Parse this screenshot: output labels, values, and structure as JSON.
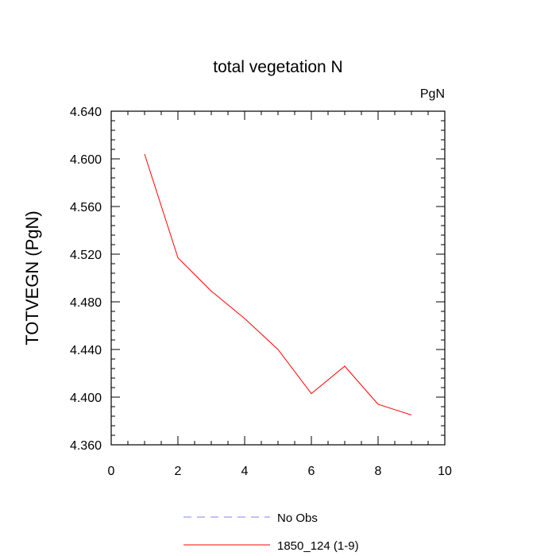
{
  "chart_data": {
    "type": "line",
    "title": "total vegetation N",
    "units_label": "PgN",
    "xlabel": "",
    "ylabel": "TOTVEGN  (PgN)",
    "xlim": [
      0,
      10
    ],
    "ylim": [
      4.36,
      4.64
    ],
    "x_ticks": [
      0,
      2,
      4,
      6,
      8,
      10
    ],
    "x_tick_labels": [
      "0",
      "2",
      "4",
      "6",
      "8",
      "10"
    ],
    "y_ticks": [
      4.36,
      4.4,
      4.44,
      4.48,
      4.52,
      4.56,
      4.6,
      4.64
    ],
    "y_tick_labels": [
      "4.360",
      "4.400",
      "4.440",
      "4.480",
      "4.520",
      "4.560",
      "4.600",
      "4.640"
    ],
    "grid": false,
    "legend_position": "bottom",
    "series": [
      {
        "name": "1850_124 (1-9)",
        "color": "#ff0000",
        "style": "solid",
        "x": [
          1,
          2,
          3,
          4,
          5,
          6,
          7,
          8,
          9
        ],
        "values": [
          4.604,
          4.517,
          4.489,
          4.466,
          4.44,
          4.403,
          4.426,
          4.394,
          4.385
        ]
      }
    ],
    "legend": [
      {
        "label": "No Obs",
        "color": "#8080ff",
        "style": "dashed"
      },
      {
        "label": "1850_124 (1-9)",
        "color": "#ff0000",
        "style": "solid"
      }
    ]
  }
}
